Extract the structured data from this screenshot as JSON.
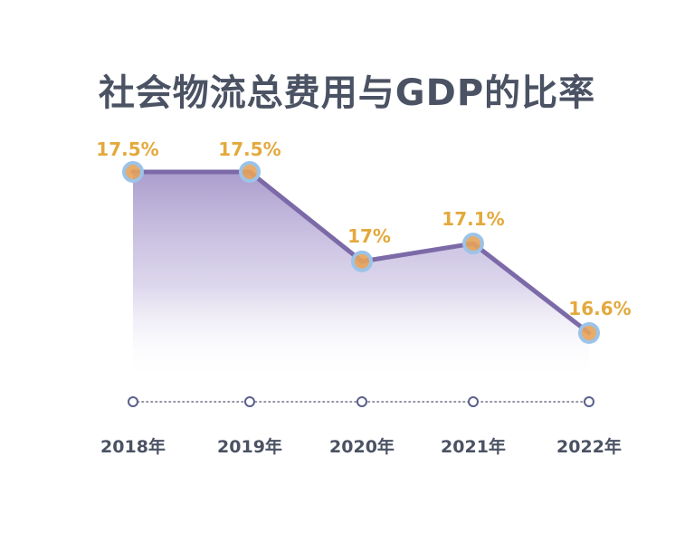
{
  "chart_data": {
    "type": "area",
    "title": "社会物流总费用与GDP的比率",
    "categories": [
      "2018年",
      "2019年",
      "2020年",
      "2021年",
      "2022年"
    ],
    "values": [
      17.5,
      17.5,
      17.0,
      17.1,
      16.6
    ],
    "value_labels": [
      "17.5%",
      "17.5%",
      "17%",
      "17.1%",
      "16.6%"
    ],
    "unit": "%",
    "ylim": [
      16.2,
      17.7
    ],
    "grid": false,
    "legend": "none",
    "colors": {
      "line": "#7c6aa8",
      "fill": "#9a88c4",
      "marker_fill": "#e6a35a",
      "marker_ring": "#9cc3e8",
      "value_label": "#e3a93c",
      "title": "#4a5263",
      "tick_label": "#4a5263",
      "axis_dots": "#6e6e8a",
      "axis_marker": "#5a5f8c"
    }
  }
}
